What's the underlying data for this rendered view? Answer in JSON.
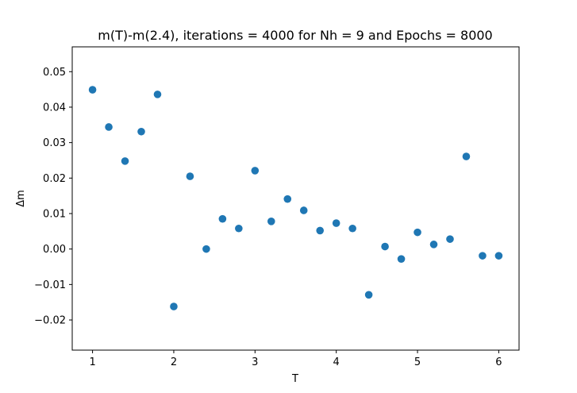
{
  "chart_data": {
    "type": "scatter",
    "title": "m(T)-m(2.4), iterations = 4000 for Nh = 9 and Epochs = 8000",
    "xlabel": "T",
    "ylabel": "Δm",
    "xlim": [
      0.75,
      6.25
    ],
    "ylim": [
      -0.0285,
      0.057
    ],
    "xticks": [
      1,
      2,
      3,
      4,
      5,
      6
    ],
    "xtick_labels": [
      "1",
      "2",
      "3",
      "4",
      "5",
      "6"
    ],
    "yticks": [
      -0.02,
      -0.01,
      0.0,
      0.01,
      0.02,
      0.03,
      0.04,
      0.05
    ],
    "ytick_labels": [
      "−0.02",
      "−0.01",
      "0.00",
      "0.01",
      "0.02",
      "0.03",
      "0.04",
      "0.05"
    ],
    "grid": false,
    "marker_color": "#1f77b4",
    "series": [
      {
        "x": [
          1.0,
          1.2,
          1.4,
          1.6,
          1.8,
          2.0,
          2.2,
          2.4,
          2.6,
          2.8,
          3.0,
          3.2,
          3.4,
          3.6,
          3.8,
          4.0,
          4.2,
          4.4,
          4.6,
          4.8,
          5.0,
          5.2,
          5.4,
          5.6,
          5.8,
          6.0
        ],
        "y": [
          0.0449,
          0.0344,
          0.0248,
          0.0331,
          0.0436,
          -0.0162,
          0.0205,
          0.0,
          0.0085,
          0.0058,
          0.0221,
          0.0078,
          0.0141,
          0.0109,
          0.0052,
          0.0073,
          0.0058,
          -0.0129,
          0.0007,
          -0.0028,
          0.0047,
          0.0013,
          0.0028,
          0.0261,
          -0.0019,
          -0.0019
        ]
      }
    ]
  }
}
